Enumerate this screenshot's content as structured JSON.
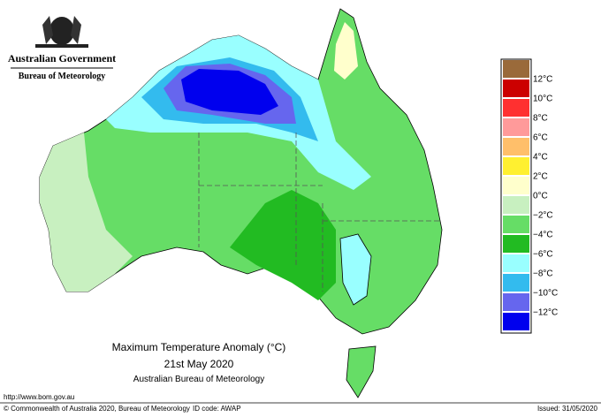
{
  "header": {
    "government": "Australian Government",
    "agency": "Bureau of Meteorology"
  },
  "map": {
    "title": "Maximum Temperature Anomaly (°C)",
    "date": "21st May 2020",
    "source": "Australian Bureau of Meteorology"
  },
  "legend": {
    "colors": [
      "#9a6a3a",
      "#cc0000",
      "#ff3030",
      "#ff9a9a",
      "#ffbf6a",
      "#fff030",
      "#ffffcc",
      "#c8f0c0",
      "#66dd66",
      "#22bb22",
      "#99ffff",
      "#33bbee",
      "#6666ee",
      "#0000ee"
    ],
    "labels": [
      "12°C",
      "10°C",
      "8°C",
      "6°C",
      "4°C",
      "2°C",
      "0°C",
      "−2°C",
      "−4°C",
      "−6°C",
      "−8°C",
      "−10°C",
      "−12°C"
    ]
  },
  "footer": {
    "url": "http://www.bom.gov.au",
    "copyright": "© Commonwealth of Australia 2020, Bureau of Meteorology",
    "id_code": "ID code: AWAP",
    "issued": "Issued: 31/05/2020"
  }
}
